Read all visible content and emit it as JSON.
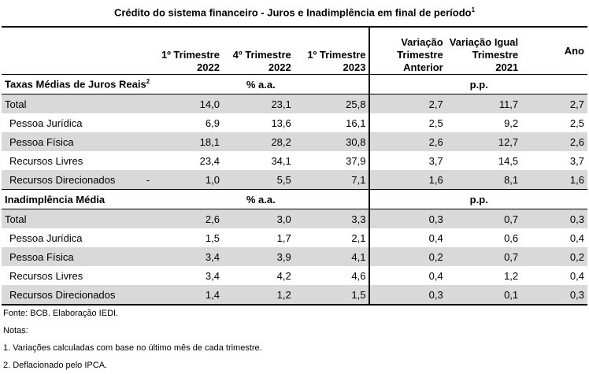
{
  "title": "Crédito do  sistema financeiro - Juros e Inadimplência em final de período",
  "title_sup": "1",
  "columns": {
    "c1_l1": "1º Trimestre",
    "c1_l2": "2022",
    "c2_l1": "4º Trimestre",
    "c2_l2": "2022",
    "c3_l1": "1º Trimestre",
    "c3_l2": "2023",
    "c4_l1": "Variação",
    "c4_l2": "Trimestre",
    "c4_l3": "Anterior",
    "c5_l1": "Variação Igual",
    "c5_l2": "Trimestre",
    "c5_l3": "2021",
    "c6_l1": "Ano"
  },
  "section1": {
    "label": "Taxas Médias de Juros Reais",
    "sup": "2",
    "unit_left": "% a.a.",
    "unit_right": "p.p."
  },
  "section2": {
    "label": "Inadimplência Média",
    "unit_left": "% a.a.",
    "unit_right": "p.p."
  },
  "rows1": [
    {
      "label": "Total",
      "dash": "",
      "v": [
        "14,0",
        "23,1",
        "25,8",
        "2,7",
        "11,7",
        "2,7"
      ]
    },
    {
      "label": "Pessoa Jurídica",
      "dash": "",
      "v": [
        "6,9",
        "13,6",
        "16,1",
        "2,5",
        "9,2",
        "2,5"
      ]
    },
    {
      "label": "Pessoa Física",
      "dash": "",
      "v": [
        "18,1",
        "28,2",
        "30,8",
        "2,6",
        "12,7",
        "2,6"
      ]
    },
    {
      "label": "Recursos Livres",
      "dash": "",
      "v": [
        "23,4",
        "34,1",
        "37,9",
        "3,7",
        "14,5",
        "3,7"
      ]
    },
    {
      "label": "Recursos Direcionados",
      "dash": "-",
      "v": [
        "1,0",
        "5,5",
        "7,1",
        "1,6",
        "8,1",
        "1,6"
      ]
    }
  ],
  "rows2": [
    {
      "label": "Total",
      "v": [
        "2,6",
        "3,0",
        "3,3",
        "0,3",
        "0,7",
        "0,3"
      ]
    },
    {
      "label": "Pessoa Jurídica",
      "v": [
        "1,5",
        "1,7",
        "2,1",
        "0,4",
        "0,6",
        "0,4"
      ]
    },
    {
      "label": "Pessoa Física",
      "v": [
        "3,4",
        "3,9",
        "4,1",
        "0,2",
        "0,7",
        "0,2"
      ]
    },
    {
      "label": "Recursos Livres",
      "v": [
        "3,4",
        "4,2",
        "4,6",
        "0,4",
        "1,2",
        "0,4"
      ]
    },
    {
      "label": "Recursos Direcionados",
      "v": [
        "1,4",
        "1,2",
        "1,5",
        "0,3",
        "0,1",
        "0,3"
      ]
    }
  ],
  "notes": {
    "source": "Fonte: BCB. Elaboração IEDI.",
    "heading": "Notas:",
    "n1": "1.  Variações calculadas com base no último mês de cada trimestre.",
    "n2": "2. Deflacionado pelo IPCA."
  }
}
